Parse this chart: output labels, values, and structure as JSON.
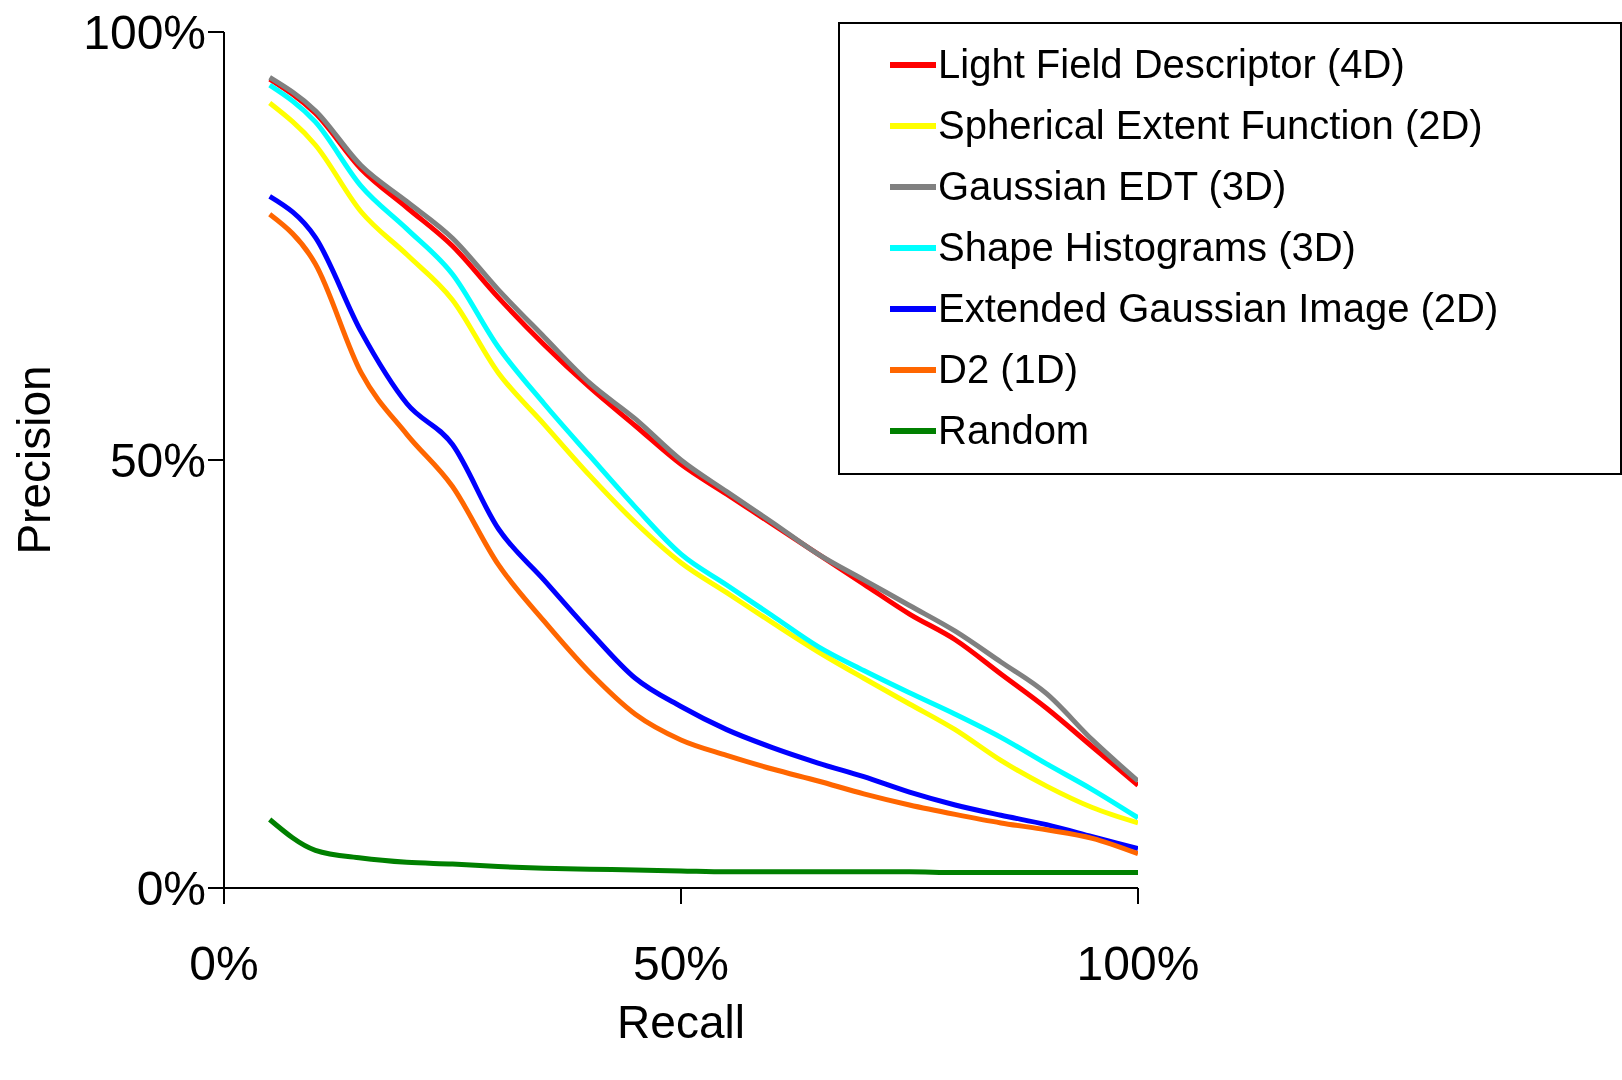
{
  "chart_data": {
    "type": "line",
    "xlabel": "Recall",
    "ylabel": "Precision",
    "x": [
      5,
      10,
      15,
      20,
      25,
      30,
      35,
      40,
      45,
      50,
      55,
      60,
      65,
      70,
      75,
      80,
      85,
      90,
      95,
      100
    ],
    "xlim": [
      0,
      100
    ],
    "ylim": [
      0,
      100
    ],
    "xticks": [
      {
        "value": 0,
        "label": "0%"
      },
      {
        "value": 50,
        "label": "50%"
      },
      {
        "value": 100,
        "label": "100%"
      }
    ],
    "yticks": [
      {
        "value": 0,
        "label": "0%"
      },
      {
        "value": 50,
        "label": "50%"
      },
      {
        "value": 100,
        "label": "100%"
      }
    ],
    "grid": false,
    "legend": "top right",
    "marker": "none",
    "series": [
      {
        "name": "Light Field Descriptor (4D)",
        "color": "#ff0000",
        "values": [
          94.5,
          90.5,
          84,
          79.5,
          75,
          69,
          63.5,
          58.5,
          54,
          49.5,
          46,
          42.5,
          39,
          35.5,
          32,
          29,
          25,
          21,
          16.5,
          12
        ]
      },
      {
        "name": "Spherical Extent Function (2D)",
        "color": "#ffff00",
        "values": [
          91.7,
          86.8,
          79,
          74,
          68.7,
          60.2,
          54.2,
          48.2,
          42.7,
          38,
          34.5,
          31,
          27.6,
          24.5,
          21.5,
          18.5,
          14.9,
          11.9,
          9.4,
          7.6
        ]
      },
      {
        "name": "Gaussian EDT (3D)",
        "color": "#808080",
        "values": [
          94.7,
          90.8,
          84.4,
          80.2,
          75.9,
          69.9,
          64.4,
          59,
          54.8,
          50,
          46.3,
          42.7,
          39,
          36,
          33,
          30,
          26.4,
          22.7,
          17.3,
          12.5
        ]
      },
      {
        "name": "Shape Histograms (3D)",
        "color": "#00ffff",
        "values": [
          93.8,
          89.5,
          82,
          77,
          71.7,
          63.2,
          56.6,
          50.5,
          44.5,
          39,
          35.4,
          31.8,
          28.2,
          25.4,
          22.8,
          20.3,
          17.6,
          14.5,
          11.5,
          8.2
        ]
      },
      {
        "name": "Extended Gaussian Image (2D)",
        "color": "#0000ff",
        "values": [
          80.8,
          76,
          65,
          56.6,
          51.8,
          42,
          36,
          30,
          24.5,
          21.2,
          18.5,
          16.4,
          14.6,
          13,
          11.2,
          9.7,
          8.5,
          7.4,
          6,
          4.6
        ]
      },
      {
        "name": "D2 (1D)",
        "color": "#ff6600",
        "values": [
          78.7,
          72.9,
          60.2,
          53,
          46.9,
          37.8,
          31.2,
          25.2,
          20.3,
          17.3,
          15.5,
          13.9,
          12.5,
          11,
          9.7,
          8.6,
          7.6,
          6.8,
          5.8,
          4
        ]
      },
      {
        "name": "Random",
        "color": "#008000",
        "values": [
          8,
          4.4,
          3.5,
          3,
          2.8,
          2.5,
          2.3,
          2.2,
          2.1,
          2,
          1.9,
          1.9,
          1.9,
          1.9,
          1.9,
          1.8,
          1.8,
          1.8,
          1.8,
          1.8
        ]
      }
    ]
  }
}
